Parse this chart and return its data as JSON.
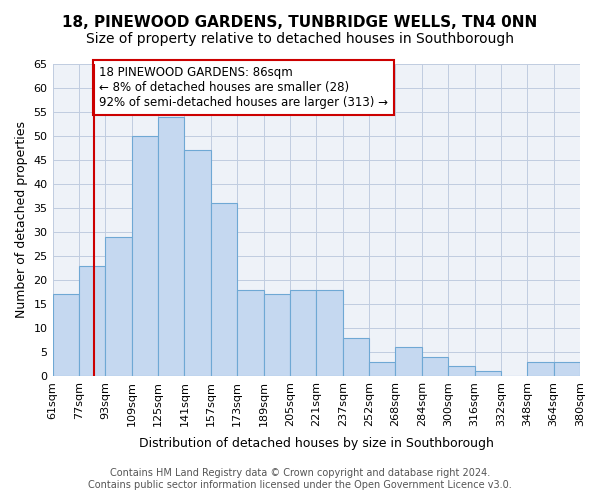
{
  "title_line1": "18, PINEWOOD GARDENS, TUNBRIDGE WELLS, TN4 0NN",
  "title_line2": "Size of property relative to detached houses in Southborough",
  "xlabel": "Distribution of detached houses by size in Southborough",
  "ylabel": "Number of detached properties",
  "bin_labels": [
    "61sqm",
    "77sqm",
    "93sqm",
    "109sqm",
    "125sqm",
    "141sqm",
    "157sqm",
    "173sqm",
    "189sqm",
    "205sqm",
    "221sqm",
    "237sqm",
    "252sqm",
    "268sqm",
    "284sqm",
    "300sqm",
    "316sqm",
    "332sqm",
    "348sqm",
    "364sqm",
    "380sqm"
  ],
  "bar_values": [
    17,
    23,
    29,
    50,
    54,
    47,
    36,
    18,
    17,
    18,
    18,
    8,
    3,
    6,
    4,
    2,
    1,
    0,
    3,
    3
  ],
  "bar_color": "#c5d8f0",
  "bar_edge_color": "#6fa8d4",
  "vline_x": 86,
  "vline_color": "#cc0000",
  "annotation_text": "18 PINEWOOD GARDENS: 86sqm\n← 8% of detached houses are smaller (28)\n92% of semi-detached houses are larger (313) →",
  "annotation_box_color": "#ffffff",
  "annotation_box_edge": "#cc0000",
  "ylim": [
    0,
    65
  ],
  "yticks": [
    0,
    5,
    10,
    15,
    20,
    25,
    30,
    35,
    40,
    45,
    50,
    55,
    60,
    65
  ],
  "grid_color": "#c0cce0",
  "background_color": "#eef2f8",
  "footer_line1": "Contains HM Land Registry data © Crown copyright and database right 2024.",
  "footer_line2": "Contains public sector information licensed under the Open Government Licence v3.0.",
  "title_fontsize": 11,
  "subtitle_fontsize": 10,
  "axis_label_fontsize": 9,
  "tick_fontsize": 8,
  "annotation_fontsize": 8.5,
  "footer_fontsize": 7
}
